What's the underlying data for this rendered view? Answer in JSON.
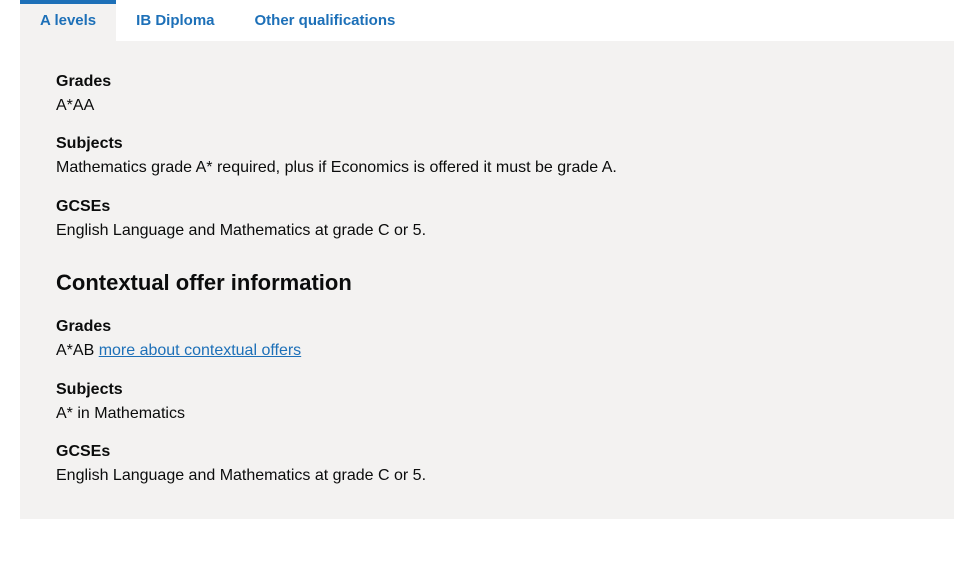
{
  "tabs": [
    {
      "label": "A levels",
      "active": true
    },
    {
      "label": "IB Diploma",
      "active": false
    },
    {
      "label": "Other qualifications",
      "active": false
    }
  ],
  "entry": {
    "grades_label": "Grades",
    "grades_value": "A*AA",
    "subjects_label": "Subjects",
    "subjects_value": "Mathematics grade A* required, plus if Economics is offered it must be grade A.",
    "gcses_label": "GCSEs",
    "gcses_value": "English Language and Mathematics at grade C or 5."
  },
  "contextual": {
    "heading": "Contextual offer information",
    "grades_label": "Grades",
    "grades_value_prefix": "A*AB ",
    "grades_link_text": "more about contextual offers",
    "subjects_label": "Subjects",
    "subjects_value": "A* in Mathematics",
    "gcses_label": "GCSEs",
    "gcses_value": "English Language and Mathematics at grade C or 5."
  },
  "colors": {
    "link": "#1d70b8",
    "panel_bg": "#f3f2f1",
    "text": "#0b0c0c"
  }
}
